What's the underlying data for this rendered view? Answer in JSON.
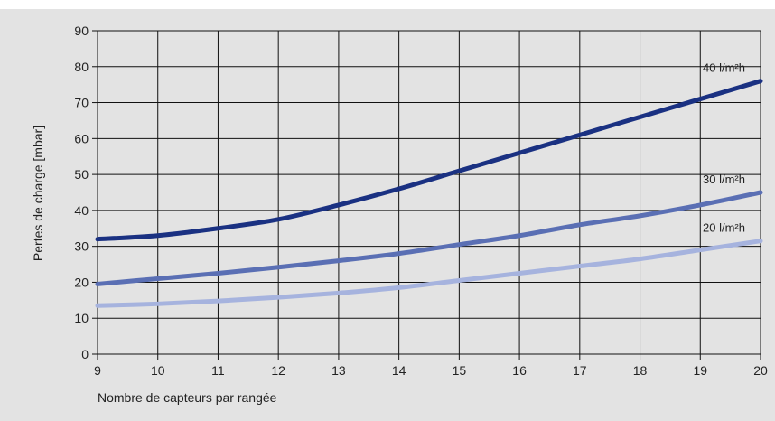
{
  "chart_data": {
    "type": "line",
    "title": "",
    "xlabel": "Nombre de capteurs par rangée",
    "ylabel": "Pertes de charge [mbar]",
    "xlim": [
      9,
      20
    ],
    "ylim": [
      0,
      90
    ],
    "xticks": [
      9,
      10,
      11,
      12,
      13,
      14,
      15,
      16,
      17,
      18,
      19,
      20
    ],
    "yticks": [
      0,
      10,
      20,
      30,
      40,
      50,
      60,
      70,
      80,
      90
    ],
    "grid": true,
    "legend": "none",
    "background": "#e3e3e3",
    "x": [
      9,
      10,
      11,
      12,
      13,
      14,
      15,
      16,
      17,
      18,
      19,
      20
    ],
    "series": [
      {
        "name": "40 l/m²h",
        "color": "#1a3182",
        "values": [
          32,
          33,
          35,
          37.5,
          41.5,
          46,
          51,
          56,
          61,
          66,
          71,
          76
        ]
      },
      {
        "name": "30 l/m²h",
        "color": "#5a6fb4",
        "values": [
          19.5,
          21,
          22.5,
          24.2,
          26,
          28,
          30.5,
          33,
          36,
          38.5,
          41.5,
          45
        ]
      },
      {
        "name": "20 l/m²h",
        "color": "#a6b3de",
        "values": [
          13.5,
          14,
          14.8,
          15.8,
          17,
          18.5,
          20.5,
          22.5,
          24.5,
          26.5,
          29,
          31.5
        ]
      }
    ]
  }
}
